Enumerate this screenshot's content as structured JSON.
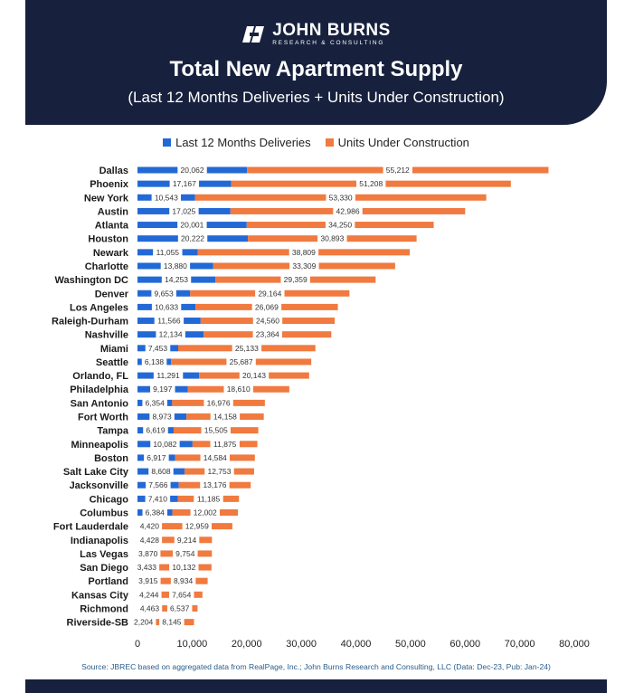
{
  "header": {
    "brand_name": "JOHN BURNS",
    "brand_sub": "RESEARCH & CONSULTING",
    "logo_icon": "jbrec-logo-icon"
  },
  "colors": {
    "header_bg": "#17213d",
    "deliveries": "#2369d6",
    "under_construction": "#f07a3f",
    "source_text": "#2a5d8a"
  },
  "source": "Source: JBREC based on aggregated data from RealPage, Inc.; John Burns Research and Consulting, LLC (Data: Dec-23, Pub: Jan-24)",
  "chart_data": {
    "type": "bar",
    "orientation": "horizontal",
    "stacked": true,
    "title": "Total New Apartment Supply",
    "subtitle": "(Last 12 Months Deliveries + Units Under Construction)",
    "xlim": [
      0,
      80000
    ],
    "xticks": [
      0,
      10000,
      20000,
      30000,
      40000,
      50000,
      60000,
      70000,
      80000
    ],
    "xtick_labels": [
      "0",
      "10,000",
      "20,000",
      "30,000",
      "40,000",
      "50,000",
      "60,000",
      "70,000",
      "80,000"
    ],
    "legend_position": "top-center",
    "grid": false,
    "categories": [
      "Dallas",
      "Phoenix",
      "New York",
      "Austin",
      "Atlanta",
      "Houston",
      "Newark",
      "Charlotte",
      "Washington DC",
      "Denver",
      "Los Angeles",
      "Raleigh-Durham",
      "Nashville",
      "Miami",
      "Seattle",
      "Orlando, FL",
      "Philadelphia",
      "San Antonio",
      "Fort Worth",
      "Tampa",
      "Minneapolis",
      "Boston",
      "Salt Lake City",
      "Jacksonville",
      "Chicago",
      "Columbus",
      "Fort Lauderdale",
      "Indianapolis",
      "Las Vegas",
      "San Diego",
      "Portland",
      "Kansas City",
      "Richmond",
      "Riverside-SB"
    ],
    "series": [
      {
        "name": "Last 12 Months Deliveries",
        "values": [
          20062,
          17167,
          10543,
          17025,
          20001,
          20222,
          11055,
          13880,
          14253,
          9653,
          10633,
          11566,
          12134,
          7453,
          6138,
          11291,
          9197,
          6354,
          8973,
          6619,
          10082,
          6917,
          8608,
          7566,
          7410,
          6384,
          4420,
          4428,
          3870,
          3433,
          3915,
          4244,
          4463,
          2204
        ],
        "labels": [
          "20,062",
          "17,167",
          "10,543",
          "17,025",
          "20,001",
          "20,222",
          "11,055",
          "13,880",
          "14,253",
          "9,653",
          "10,633",
          "11,566",
          "12,134",
          "7,453",
          "6,138",
          "11,291",
          "9,197",
          "6,354",
          "8,973",
          "6,619",
          "10,082",
          "6,917",
          "8,608",
          "7,566",
          "7,410",
          "6,384",
          "4,420",
          "4,428",
          "3,870",
          "3,433",
          "3,915",
          "4,244",
          "4,463",
          "2,204"
        ]
      },
      {
        "name": "Units Under Construction",
        "values": [
          55212,
          51208,
          53330,
          42986,
          34250,
          30893,
          38809,
          33309,
          29359,
          29164,
          26069,
          24560,
          23364,
          25133,
          25687,
          20143,
          18610,
          16976,
          14158,
          15505,
          11875,
          14584,
          12753,
          13176,
          11185,
          12002,
          12959,
          9214,
          9754,
          10132,
          8934,
          7654,
          6537,
          8145
        ],
        "labels": [
          "55,212",
          "51,208",
          "53,330",
          "42,986",
          "34,250",
          "30,893",
          "38,809",
          "33,309",
          "29,359",
          "29,164",
          "26,069",
          "24,560",
          "23,364",
          "25,133",
          "25,687",
          "20,143",
          "18,610",
          "16,976",
          "14,158",
          "15,505",
          "11,875",
          "14,584",
          "12,753",
          "13,176",
          "11,185",
          "12,002",
          "12,959",
          "9,214",
          "9,754",
          "10,132",
          "8,934",
          "7,654",
          "6,537",
          "8,145"
        ]
      }
    ]
  }
}
